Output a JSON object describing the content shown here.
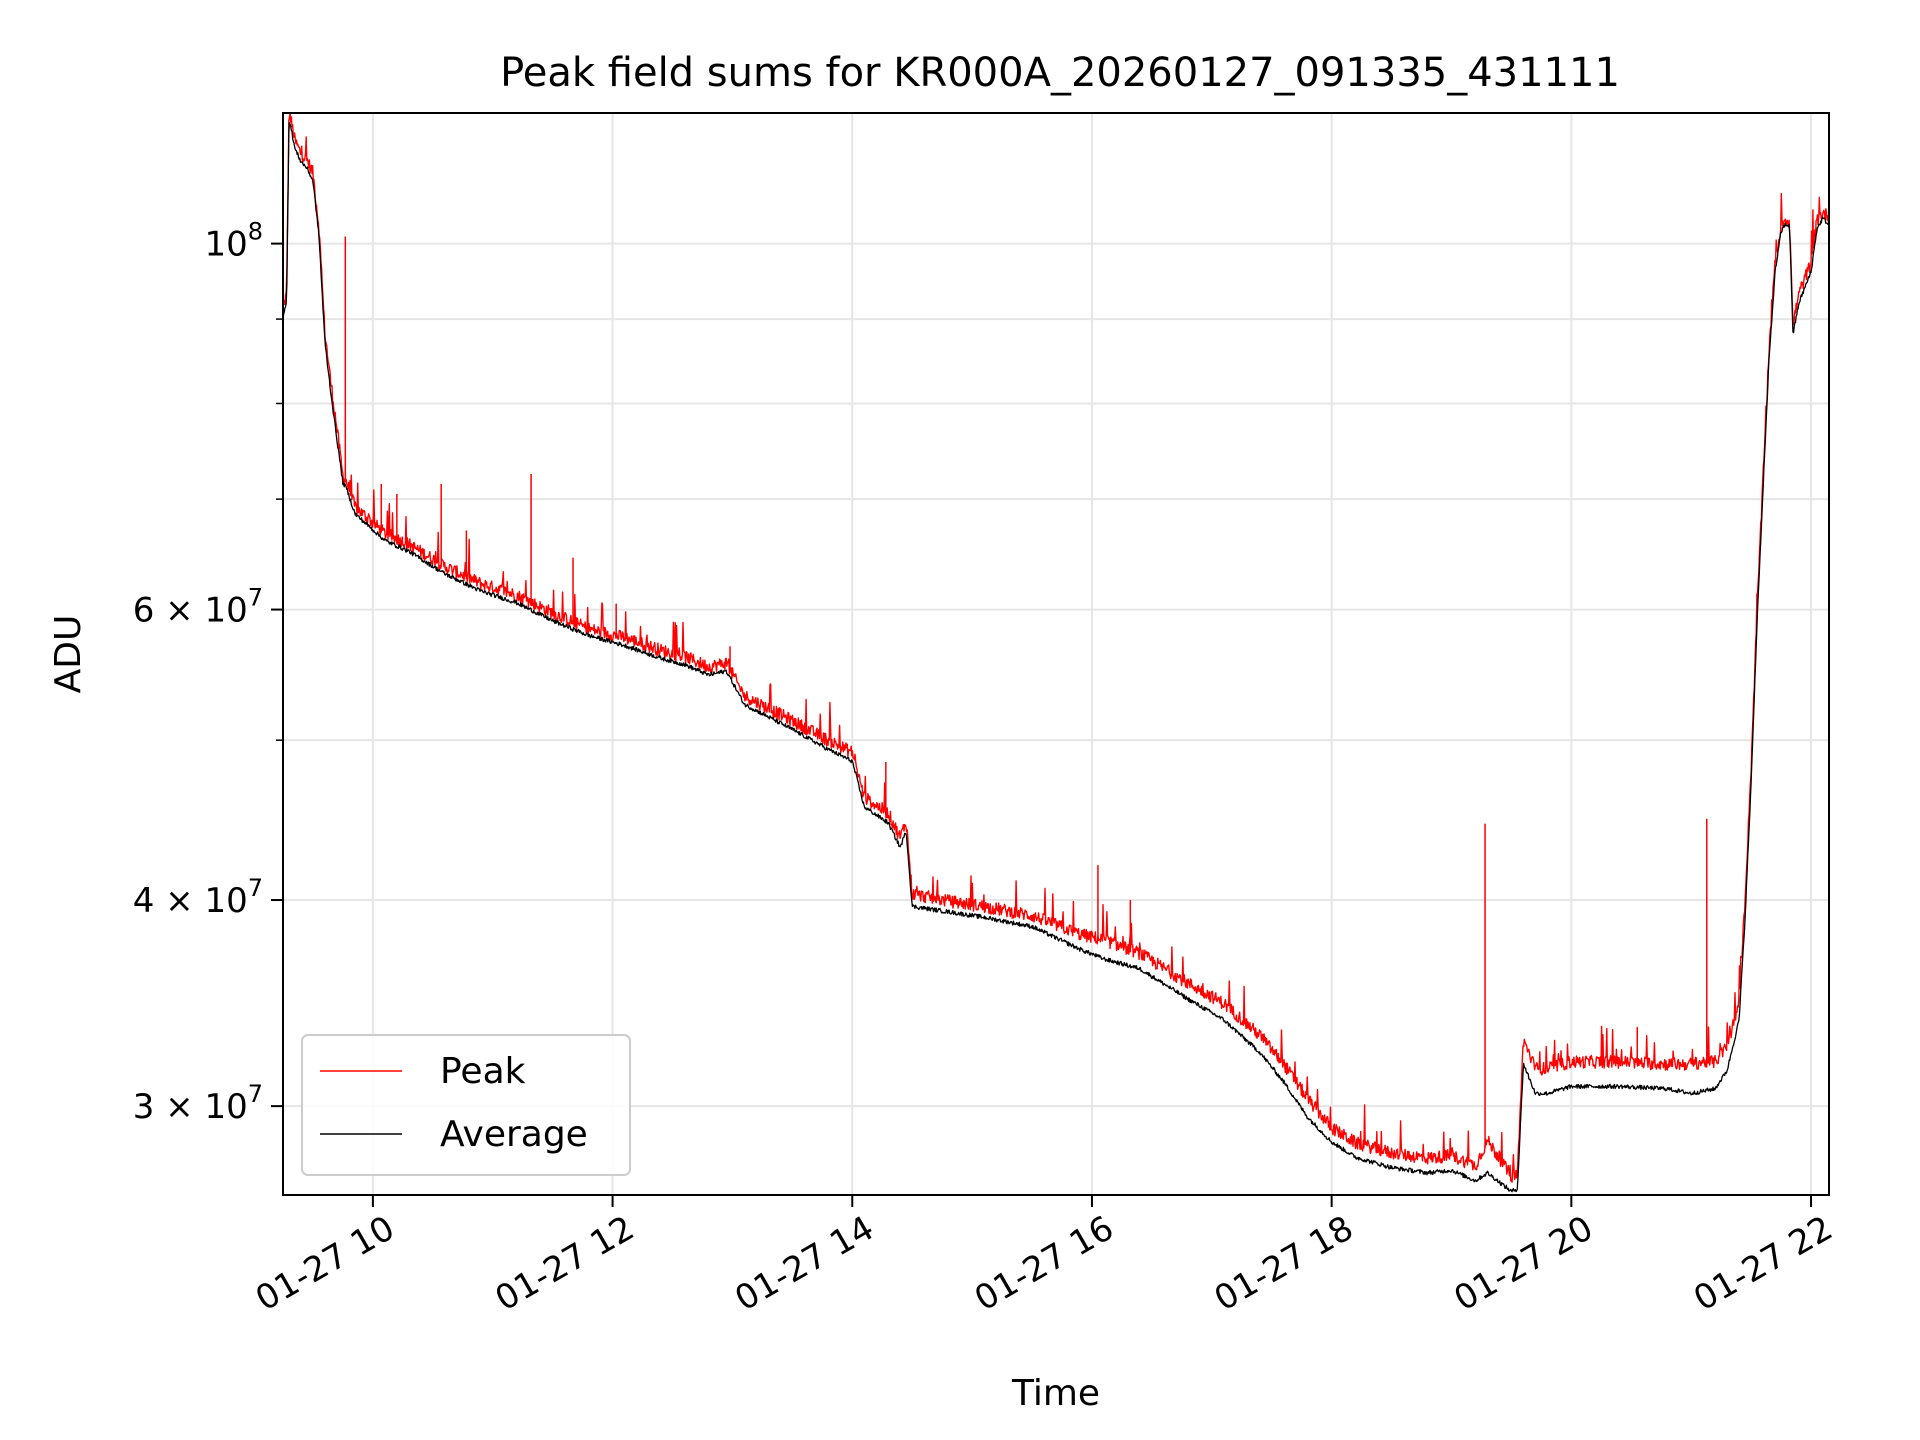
{
  "chart_data": {
    "type": "line",
    "title": "Peak field sums for KR000A_20260127_091335_431111",
    "xlabel": "Time",
    "ylabel": "ADU",
    "yscale": "log",
    "ylim": [
      26500000,
      120000000
    ],
    "xlim": [
      9.25,
      22.15
    ],
    "grid": true,
    "legend_position": "lower-left",
    "x_ticks": [
      {
        "value": 10,
        "label": "01-27 10"
      },
      {
        "value": 12,
        "label": "01-27 12"
      },
      {
        "value": 14,
        "label": "01-27 14"
      },
      {
        "value": 16,
        "label": "01-27 16"
      },
      {
        "value": 18,
        "label": "01-27 18"
      },
      {
        "value": 20,
        "label": "01-27 20"
      },
      {
        "value": 22,
        "label": "01-27 22"
      }
    ],
    "y_major_ticks": [
      {
        "value": 100000000,
        "base": "10",
        "exp": "8",
        "coef": ""
      },
      {
        "value": 60000000,
        "base": "10",
        "exp": "7",
        "coef": "6"
      },
      {
        "value": 40000000,
        "base": "10",
        "exp": "7",
        "coef": "4"
      },
      {
        "value": 30000000,
        "base": "10",
        "exp": "7",
        "coef": "3"
      }
    ],
    "y_minor_ticks": [
      90000000,
      80000000,
      70000000,
      50000000
    ],
    "series": [
      {
        "name": "Peak",
        "color": "#ff0000",
        "x": [
          9.25,
          9.28,
          9.3,
          9.32,
          9.35,
          9.4,
          9.45,
          9.5,
          9.55,
          9.6,
          9.65,
          9.7,
          9.75,
          9.78,
          9.85,
          9.95,
          10.1,
          10.3,
          10.6,
          10.9,
          11.2,
          11.5,
          11.8,
          12.1,
          12.4,
          12.6,
          12.8,
          12.95,
          13.1,
          13.5,
          13.8,
          14.0,
          14.1,
          14.3,
          14.4,
          14.45,
          14.5,
          14.8,
          15.1,
          15.5,
          15.9,
          16.1,
          16.4,
          16.8,
          17.1,
          17.4,
          17.6,
          17.8,
          18.0,
          18.2,
          18.5,
          18.8,
          19.0,
          19.2,
          19.3,
          19.5,
          19.55,
          19.6,
          19.7,
          19.8,
          20.0,
          20.4,
          20.8,
          21.0,
          21.1,
          21.2,
          21.3,
          21.4,
          21.45,
          21.5,
          21.55,
          21.6,
          21.65,
          21.7,
          21.75,
          21.78,
          21.82,
          21.85,
          21.9,
          22.0,
          22.05,
          22.1,
          22.15
        ],
        "y": [
          91000000,
          93000000,
          120000000,
          118000000,
          115000000,
          113000000,
          112000000,
          110000000,
          102000000,
          88000000,
          82000000,
          77000000,
          72000000,
          71500000,
          69000000,
          68000000,
          66500000,
          65500000,
          63500000,
          62000000,
          61000000,
          59500000,
          58200000,
          57500000,
          56500000,
          56000000,
          55200000,
          55500000,
          53000000,
          51200000,
          49800000,
          49000000,
          46000000,
          45000000,
          43500000,
          44500000,
          40200000,
          39800000,
          39500000,
          39000000,
          38000000,
          37700000,
          37000000,
          35500000,
          34500000,
          33000000,
          31700000,
          30200000,
          29000000,
          28400000,
          28000000,
          27800000,
          27900000,
          27500000,
          28500000,
          27100000,
          27200000,
          32800000,
          31500000,
          31500000,
          31800000,
          31800000,
          31700000,
          31700000,
          31800000,
          31800000,
          32500000,
          34500000,
          40000000,
          48000000,
          60000000,
          72000000,
          86000000,
          97000000,
          102000000,
          103000000,
          103000000,
          89000000,
          93000000,
          97000000,
          103000000,
          104000000,
          103500000
        ]
      },
      {
        "name": "Average",
        "color": "#000000",
        "x": [
          9.25,
          9.28,
          9.3,
          9.32,
          9.35,
          9.4,
          9.45,
          9.5,
          9.55,
          9.6,
          9.65,
          9.7,
          9.75,
          9.78,
          9.85,
          9.95,
          10.1,
          10.3,
          10.6,
          10.9,
          11.2,
          11.5,
          11.8,
          12.1,
          12.4,
          12.6,
          12.8,
          12.95,
          13.1,
          13.5,
          13.8,
          14.0,
          14.1,
          14.3,
          14.4,
          14.45,
          14.5,
          14.8,
          15.1,
          15.5,
          15.9,
          16.1,
          16.4,
          16.8,
          17.1,
          17.4,
          17.6,
          17.8,
          18.0,
          18.2,
          18.5,
          18.8,
          19.0,
          19.2,
          19.3,
          19.5,
          19.55,
          19.6,
          19.7,
          19.8,
          20.0,
          20.4,
          20.8,
          21.0,
          21.1,
          21.2,
          21.3,
          21.4,
          21.45,
          21.5,
          21.55,
          21.6,
          21.65,
          21.7,
          21.75,
          21.78,
          21.82,
          21.85,
          21.9,
          22.0,
          22.05,
          22.1,
          22.15
        ],
        "y": [
          90000000,
          92000000,
          119000000,
          117000000,
          114000000,
          112000000,
          111000000,
          109000000,
          101000000,
          87000000,
          81000000,
          76000000,
          71500000,
          71000000,
          68500000,
          67500000,
          66000000,
          65000000,
          63000000,
          61500000,
          60500000,
          59000000,
          57800000,
          57000000,
          56000000,
          55500000,
          54700000,
          55000000,
          52500000,
          50700000,
          49300000,
          48500000,
          45500000,
          44500000,
          43000000,
          44000000,
          39600000,
          39300000,
          39000000,
          38500000,
          37300000,
          36800000,
          36300000,
          34800000,
          33800000,
          32300000,
          31000000,
          29500000,
          28500000,
          27900000,
          27500000,
          27300000,
          27400000,
          27000000,
          27300000,
          26600000,
          26700000,
          31800000,
          30500000,
          30500000,
          30800000,
          30800000,
          30700000,
          30500000,
          30600000,
          30700000,
          31500000,
          33800000,
          39000000,
          47000000,
          59000000,
          71000000,
          85000000,
          96000000,
          101500000,
          102500000,
          102500000,
          88000000,
          92000000,
          96000000,
          102000000,
          103500000,
          102500000
        ]
      }
    ],
    "spikes": [
      {
        "x": 9.77,
        "y": 101000000
      },
      {
        "x": 10.07,
        "y": 71500000
      },
      {
        "x": 10.2,
        "y": 70500000
      },
      {
        "x": 10.57,
        "y": 71500000
      },
      {
        "x": 10.78,
        "y": 67000000
      },
      {
        "x": 11.32,
        "y": 72500000
      },
      {
        "x": 11.67,
        "y": 64500000
      },
      {
        "x": 12.03,
        "y": 60500000
      },
      {
        "x": 12.98,
        "y": 57000000
      },
      {
        "x": 14.28,
        "y": 48500000
      },
      {
        "x": 16.05,
        "y": 42000000
      },
      {
        "x": 16.32,
        "y": 40000000
      },
      {
        "x": 19.28,
        "y": 44500000
      },
      {
        "x": 21.13,
        "y": 44800000
      },
      {
        "x": 20.55,
        "y": 33500000
      }
    ]
  }
}
